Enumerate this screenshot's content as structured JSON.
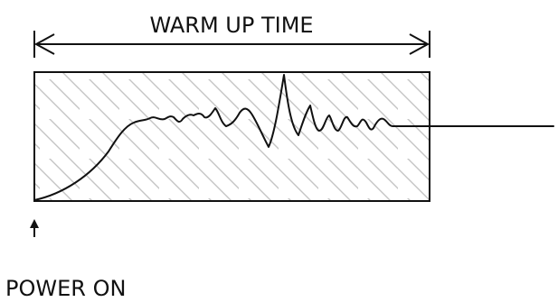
{
  "diagram": {
    "span_label": "WARM UP TIME",
    "event_label": "POWER ON"
  },
  "colors": {
    "stroke": "#111111",
    "hatch": "#bdbdbd",
    "background": "#ffffff"
  }
}
